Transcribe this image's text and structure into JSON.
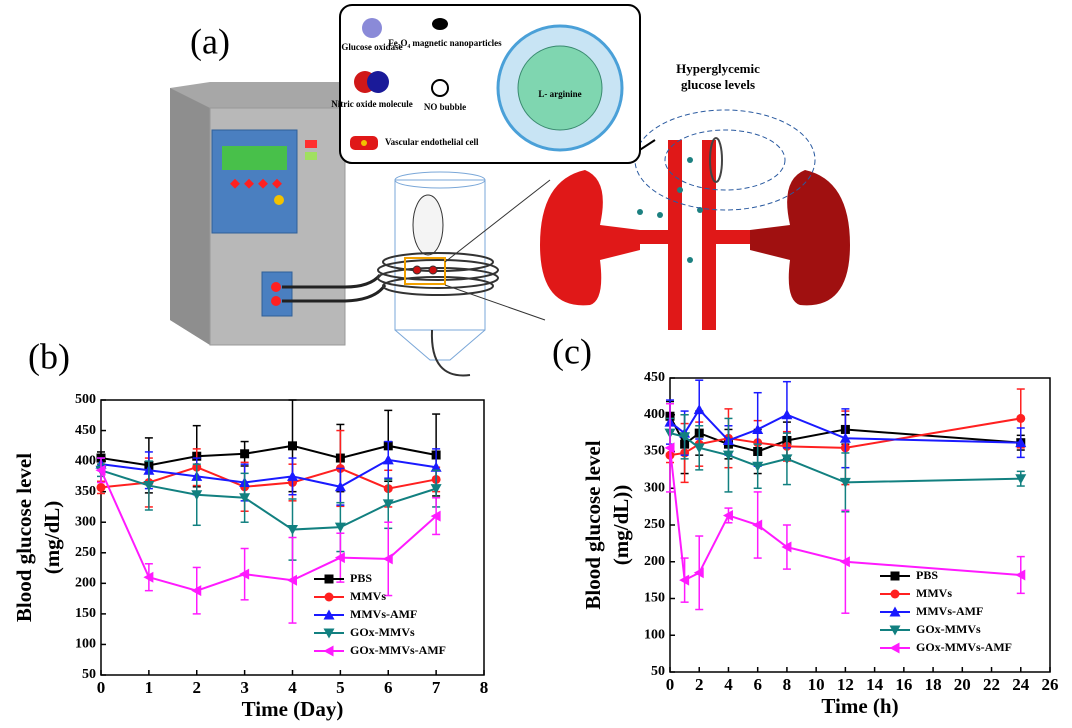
{
  "figure": {
    "panel_labels": [
      "(a)",
      "(b)",
      "(c)"
    ],
    "diagram": {
      "legend_items": [
        "Glucose oxidase",
        "Fe₃O₄ magnetic nanoparticles",
        "Nitric oxide molecule",
        "NO bubble",
        "Vascular endothelial cell"
      ],
      "core_label": "L- arginine",
      "callout": [
        "Hyperglycemic",
        "glucose levels"
      ]
    }
  },
  "chart_data": [
    {
      "type": "line",
      "xlabel": "Time (Day)",
      "ylabel": [
        "Blood glucose level",
        "(mg/dL)"
      ],
      "x": [
        0,
        1,
        2,
        3,
        4,
        5,
        6,
        7
      ],
      "xlim": [
        0,
        8
      ],
      "xticks": [
        0,
        1,
        2,
        3,
        4,
        5,
        6,
        7,
        8
      ],
      "ylim": [
        50,
        500
      ],
      "yticks": [
        50,
        100,
        150,
        200,
        250,
        300,
        350,
        400,
        450,
        500
      ],
      "legend": "lower right",
      "series": [
        {
          "name": "PBS",
          "color": "#000000",
          "marker": "square",
          "values": [
            405,
            393,
            408,
            412,
            425,
            405,
            425,
            410
          ],
          "errors": [
            10,
            45,
            50,
            20,
            75,
            55,
            58,
            67
          ]
        },
        {
          "name": "MMVs",
          "color": "#ff2020",
          "marker": "circle",
          "values": [
            357,
            365,
            390,
            358,
            365,
            388,
            355,
            370
          ],
          "errors": [
            10,
            40,
            30,
            40,
            30,
            62,
            30,
            20
          ]
        },
        {
          "name": "MMVs-AMF",
          "color": "#1a1aff",
          "marker": "triangle-up",
          "values": [
            395,
            385,
            375,
            365,
            375,
            358,
            402,
            390
          ],
          "errors": [
            10,
            30,
            30,
            30,
            30,
            30,
            30,
            30
          ]
        },
        {
          "name": "GOx-MMVs",
          "color": "#128080",
          "marker": "triangle-down",
          "values": [
            385,
            360,
            345,
            340,
            288,
            292,
            330,
            355
          ],
          "errors": [
            10,
            40,
            50,
            40,
            50,
            40,
            40,
            30
          ]
        },
        {
          "name": "GOx-MMVs-AMF",
          "color": "#ff1aff",
          "marker": "triangle-left",
          "values": [
            385,
            210,
            188,
            215,
            205,
            242,
            240,
            310
          ],
          "errors": [
            20,
            22,
            38,
            42,
            70,
            40,
            60,
            30
          ]
        }
      ]
    },
    {
      "type": "line",
      "xlabel": "Time (h)",
      "ylabel": [
        "Blood glucose level",
        "(mg/dL))"
      ],
      "x": [
        0,
        1,
        2,
        4,
        6,
        8,
        12,
        24
      ],
      "xlim": [
        0,
        26
      ],
      "xticks": [
        0,
        2,
        4,
        6,
        8,
        10,
        12,
        14,
        16,
        18,
        20,
        22,
        24,
        26
      ],
      "ylim": [
        50,
        450
      ],
      "yticks": [
        50,
        100,
        150,
        200,
        250,
        300,
        350,
        400,
        450
      ],
      "legend": "lower right",
      "series": [
        {
          "name": "PBS",
          "color": "#000000",
          "marker": "square",
          "values": [
            398,
            360,
            375,
            360,
            350,
            365,
            380,
            362
          ],
          "errors": [
            20,
            40,
            30,
            20,
            30,
            25,
            20,
            10
          ]
        },
        {
          "name": "MMVs",
          "color": "#ff2020",
          "marker": "circle",
          "values": [
            345,
            348,
            360,
            368,
            362,
            357,
            355,
            395
          ],
          "errors": [
            10,
            40,
            30,
            40,
            30,
            20,
            50,
            40
          ]
        },
        {
          "name": "MMVs-AMF",
          "color": "#1a1aff",
          "marker": "triangle-up",
          "values": [
            390,
            375,
            407,
            365,
            380,
            400,
            368,
            362
          ],
          "errors": [
            30,
            30,
            40,
            20,
            50,
            45,
            40,
            20
          ]
        },
        {
          "name": "GOx-MMVs",
          "color": "#128080",
          "marker": "triangle-down",
          "values": [
            375,
            370,
            355,
            345,
            330,
            340,
            308,
            313
          ],
          "errors": [
            20,
            30,
            30,
            50,
            30,
            35,
            40,
            10
          ]
        },
        {
          "name": "GOx-MMVs-AMF",
          "color": "#ff1aff",
          "marker": "triangle-left",
          "values": [
            355,
            175,
            185,
            263,
            250,
            220,
            200,
            182
          ],
          "errors": [
            60,
            30,
            50,
            10,
            45,
            30,
            70,
            25
          ]
        }
      ]
    }
  ]
}
